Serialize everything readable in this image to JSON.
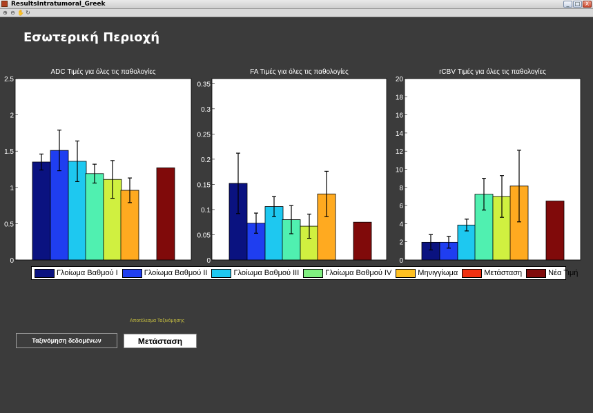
{
  "window": {
    "title": "ResultsIntratumoral_Greek",
    "buttons": [
      "_",
      "□",
      "X"
    ]
  },
  "page": {
    "title": "Εσωτερική Περιοχή"
  },
  "colors": {
    "background": "#3b3b3b",
    "plot_bg": "#ffffff",
    "series": [
      "#0a1280",
      "#1f3ef0",
      "#1ec8f0",
      "#50f0b0",
      "#d0f040",
      "#ffaa20",
      "#f03010",
      "#800a0a"
    ]
  },
  "legend": {
    "entries": [
      {
        "label": "Γλοίωμα Βαθμού Ι",
        "color": "#0a1280"
      },
      {
        "label": "Γλοίωμα Βαθμού ΙΙ",
        "color": "#1f3ef0"
      },
      {
        "label": "Γλοίωμα Βαθμού ΙΙΙ",
        "color": "#1ec8f0"
      },
      {
        "label": "Γλοίωμα Βαθμού ΙV",
        "color": "#80f080"
      },
      {
        "label": "Μηνιγγίωμα",
        "color": "#ffc020"
      },
      {
        "label": "Μετάσταση",
        "color": "#f03010"
      },
      {
        "label": "Νέα Τιμή",
        "color": "#800a0a"
      }
    ]
  },
  "chart_data": [
    {
      "type": "bar",
      "title": "ADC Τιμές για όλες τις παθολογίες",
      "ylim": [
        0,
        2.5
      ],
      "yticks": [
        "0",
        "0.5",
        "1",
        "1.5",
        "2",
        "2.5"
      ],
      "yticks_values": [
        0,
        0.5,
        1,
        1.5,
        2,
        2.5
      ],
      "values": [
        1.35,
        1.51,
        1.36,
        1.19,
        1.11,
        0.96,
        null,
        1.27
      ],
      "errors": [
        0.11,
        0.28,
        0.28,
        0.13,
        0.26,
        0.17,
        null,
        null
      ],
      "colors": [
        "#0a1280",
        "#1f3ef0",
        "#1ec8f0",
        "#50f0b0",
        "#d0f040",
        "#ffaa20",
        "#f03010",
        "#800a0a"
      ]
    },
    {
      "type": "bar",
      "title": "FA Τιμές για όλες τις παθολογίες",
      "ylim": [
        0,
        0.36
      ],
      "yticks": [
        "0",
        "0.05",
        "0.1",
        "0.15",
        "0.2",
        "0.25",
        "0.3",
        "0.35"
      ],
      "yticks_values": [
        0,
        0.05,
        0.1,
        0.15,
        0.2,
        0.25,
        0.3,
        0.35
      ],
      "values": [
        0.152,
        0.073,
        0.106,
        0.08,
        0.067,
        0.131,
        null,
        0.075
      ],
      "errors": [
        0.06,
        0.02,
        0.02,
        0.028,
        0.024,
        0.045,
        null,
        null
      ],
      "colors": [
        "#0a1280",
        "#1f3ef0",
        "#1ec8f0",
        "#50f0b0",
        "#d0f040",
        "#ffaa20",
        "#f03010",
        "#800a0a"
      ]
    },
    {
      "type": "bar",
      "title": "rCBV Τιμές για όλες τις παθολογίες",
      "ylim": [
        0,
        20
      ],
      "yticks": [
        "0",
        "2",
        "4",
        "6",
        "8",
        "10",
        "12",
        "14",
        "16",
        "18",
        "20"
      ],
      "yticks_values": [
        0,
        2,
        4,
        6,
        8,
        10,
        12,
        14,
        16,
        18,
        20
      ],
      "values": [
        1.95,
        1.95,
        3.85,
        7.25,
        7.0,
        8.15,
        null,
        6.5
      ],
      "errors": [
        0.85,
        0.65,
        0.65,
        1.75,
        2.3,
        3.95,
        null,
        null
      ],
      "colors": [
        "#0a1280",
        "#1f3ef0",
        "#1ec8f0",
        "#50f0b0",
        "#d0f040",
        "#ffaa20",
        "#f03010",
        "#800a0a"
      ]
    }
  ],
  "controls": {
    "result_caption": "Αποτέλεσμα Ταξινόμησης",
    "classify_button": "Ταξινόμηση δεδομένων",
    "result_value": "Μετάσταση"
  }
}
